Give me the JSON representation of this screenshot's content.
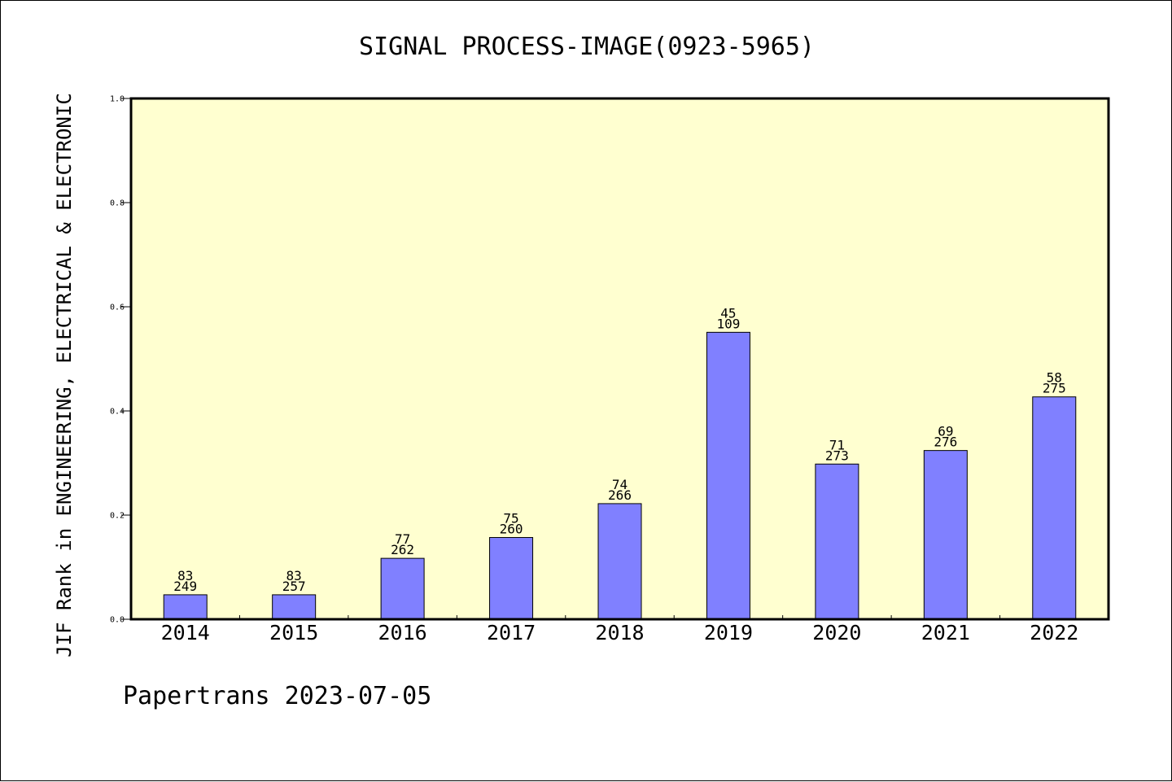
{
  "chart_data": {
    "type": "bar",
    "title": "SIGNAL PROCESS-IMAGE(0923-5965)",
    "ylabel": "JIF Rank in ENGINEERING, ELECTRICAL & ELECTRONIC",
    "xlabel": "",
    "footer": "Papertrans 2023-07-05",
    "ylim": [
      0,
      1.0
    ],
    "yticks": [
      "0.0",
      "0.2",
      "0.4",
      "0.6",
      "0.8",
      "1.0"
    ],
    "categories": [
      "2014",
      "2015",
      "2016",
      "2017",
      "2018",
      "2019",
      "2020",
      "2021",
      "2022"
    ],
    "values": [
      0.047,
      0.047,
      0.117,
      0.157,
      0.222,
      0.551,
      0.298,
      0.324,
      0.427
    ],
    "rank": [
      "83",
      "83",
      "77",
      "75",
      "74",
      "45",
      "71",
      "69",
      "58"
    ],
    "total": [
      "249",
      "257",
      "262",
      "260",
      "266",
      "109",
      "273",
      "276",
      "275"
    ],
    "grid": false,
    "legend": "none",
    "colors": {
      "plot_bg": "#ffffd0",
      "bar": "#8080ff",
      "axis": "#000000"
    }
  }
}
